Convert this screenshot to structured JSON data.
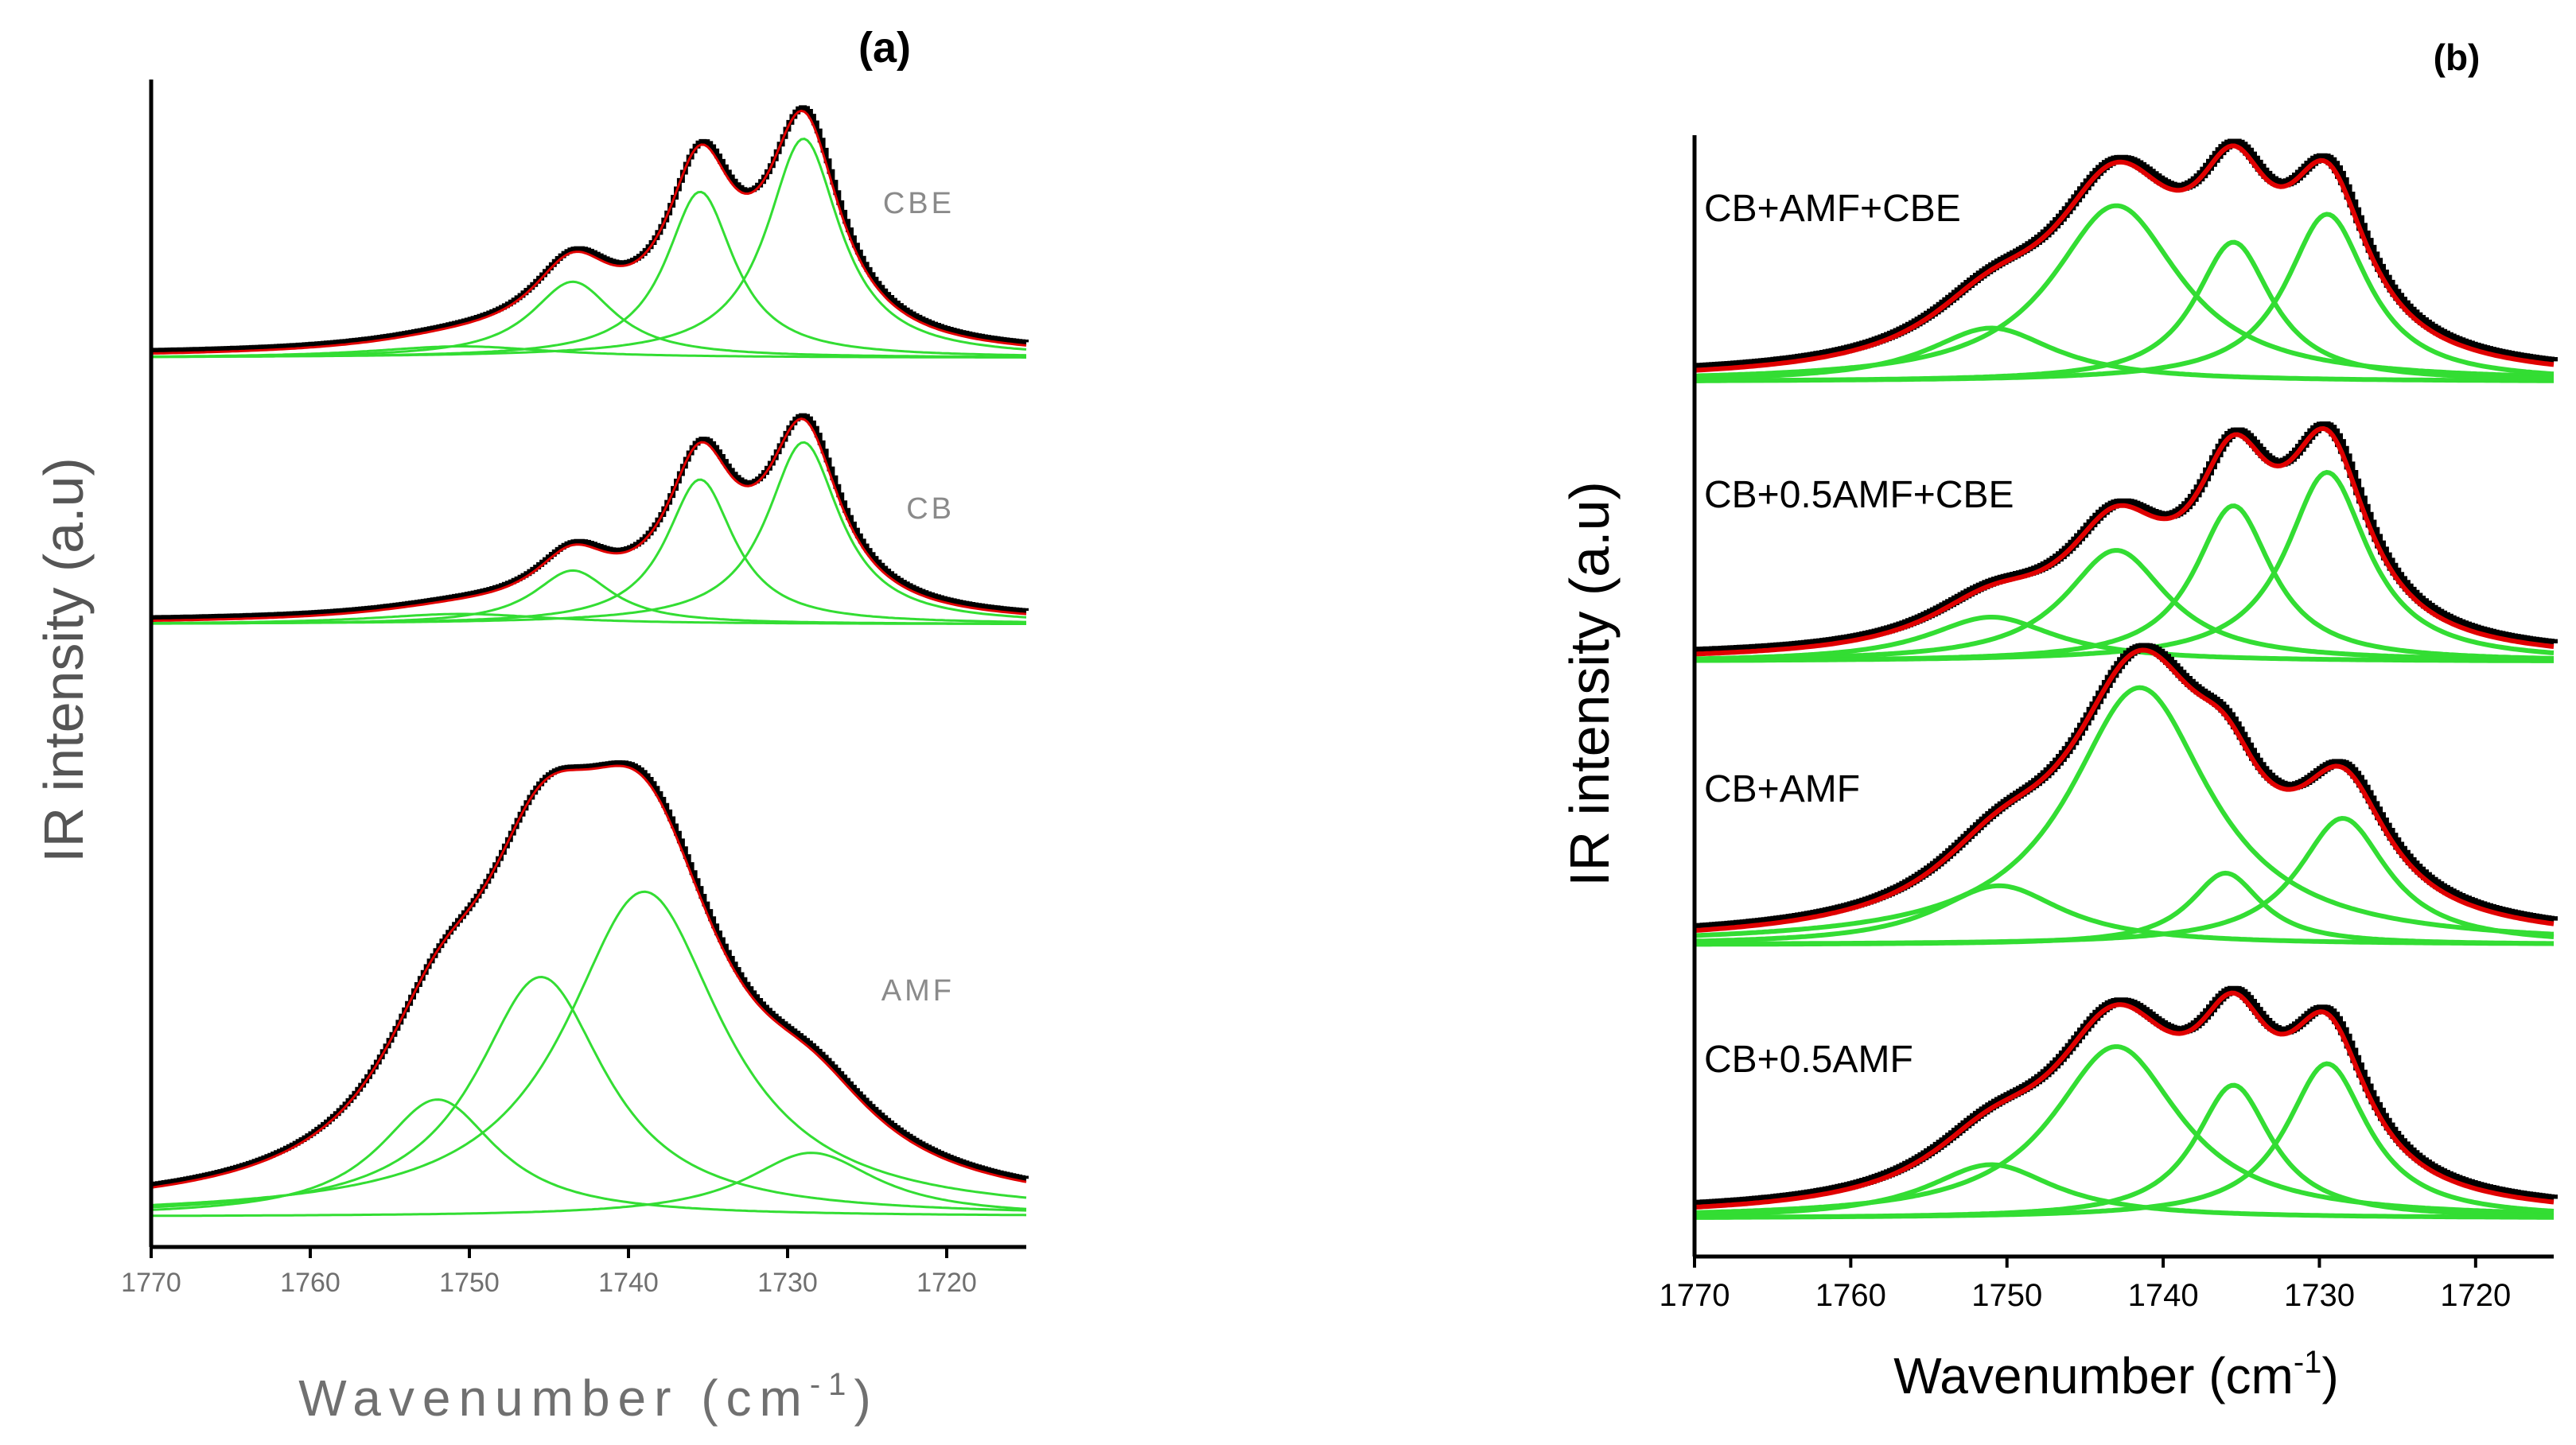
{
  "chart_data": [
    {
      "type": "line",
      "panel_label": "(a)",
      "xlabel": "Wavenumber (cm",
      "xlabel_sup": "-1",
      "xlabel_close": ")",
      "ylabel": "IR intensity (a.u)",
      "xlim": [
        1770,
        1715
      ],
      "xticks": [
        1770,
        1760,
        1750,
        1740,
        1730,
        1720
      ],
      "colors": {
        "experimental": "#000000",
        "fit": "#e00000",
        "components": "#33dd33"
      },
      "spectra": [
        {
          "name": "CBE",
          "components": [
            {
              "center": 1750.5,
              "amp": 0.05,
              "width": 7
            },
            {
              "center": 1743.5,
              "amp": 0.33,
              "width": 3.2
            },
            {
              "center": 1735.5,
              "amp": 0.72,
              "width": 2.6
            },
            {
              "center": 1729.0,
              "amp": 0.95,
              "width": 2.8
            }
          ]
        },
        {
          "name": "CB",
          "components": [
            {
              "center": 1750.5,
              "amp": 0.05,
              "width": 7
            },
            {
              "center": 1743.5,
              "amp": 0.26,
              "width": 3.0
            },
            {
              "center": 1735.5,
              "amp": 0.7,
              "width": 2.6
            },
            {
              "center": 1729.0,
              "amp": 0.88,
              "width": 2.8
            }
          ]
        },
        {
          "name": "AMF",
          "components": [
            {
              "center": 1752.0,
              "amp": 0.22,
              "width": 4.5
            },
            {
              "center": 1745.5,
              "amp": 0.45,
              "width": 5
            },
            {
              "center": 1739.0,
              "amp": 0.61,
              "width": 6
            },
            {
              "center": 1728.5,
              "amp": 0.12,
              "width": 5
            }
          ]
        }
      ]
    },
    {
      "type": "line",
      "panel_label": "(b)",
      "xlabel": "Wavenumber (cm",
      "xlabel_sup": "-1",
      "xlabel_close": ")",
      "ylabel": "IR intensity (a.u)",
      "xlim": [
        1770,
        1715
      ],
      "xticks": [
        1770,
        1760,
        1750,
        1740,
        1730,
        1720
      ],
      "colors": {
        "experimental": "#000000",
        "fit": "#e00000",
        "components": "#33dd33"
      },
      "spectra": [
        {
          "name": "CB+AMF+CBE",
          "components": [
            {
              "center": 1751.0,
              "amp": 0.25,
              "width": 5
            },
            {
              "center": 1743.0,
              "amp": 0.82,
              "width": 5
            },
            {
              "center": 1735.5,
              "amp": 0.65,
              "width": 3
            },
            {
              "center": 1729.5,
              "amp": 0.78,
              "width": 3.2
            }
          ]
        },
        {
          "name": "CB+0.5AMF+CBE",
          "components": [
            {
              "center": 1751.0,
              "amp": 0.2,
              "width": 5
            },
            {
              "center": 1743.0,
              "amp": 0.5,
              "width": 4
            },
            {
              "center": 1735.5,
              "amp": 0.7,
              "width": 3
            },
            {
              "center": 1729.5,
              "amp": 0.85,
              "width": 3.2
            }
          ]
        },
        {
          "name": "CB+AMF",
          "components": [
            {
              "center": 1750.5,
              "amp": 0.28,
              "width": 5
            },
            {
              "center": 1741.5,
              "amp": 1.22,
              "width": 5.5
            },
            {
              "center": 1736.0,
              "amp": 0.34,
              "width": 2.8
            },
            {
              "center": 1728.5,
              "amp": 0.6,
              "width": 3.5
            }
          ]
        },
        {
          "name": "CB+0.5AMF",
          "components": [
            {
              "center": 1751.0,
              "amp": 0.25,
              "width": 5
            },
            {
              "center": 1743.0,
              "amp": 0.8,
              "width": 5
            },
            {
              "center": 1735.5,
              "amp": 0.62,
              "width": 3
            },
            {
              "center": 1729.5,
              "amp": 0.72,
              "width": 3.2
            }
          ]
        }
      ]
    }
  ]
}
